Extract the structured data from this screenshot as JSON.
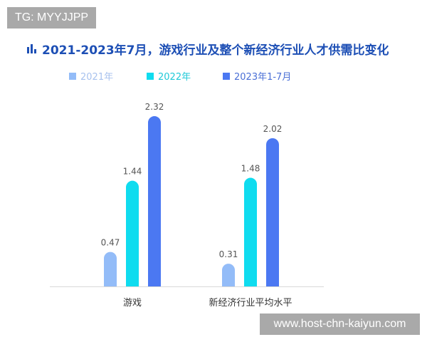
{
  "watermarks": {
    "top_left": "TG: MYYJJPP",
    "bottom_right": "www.host-chn-kaiyun.com"
  },
  "chart_data": {
    "type": "bar",
    "title": "2021-2023年7月，游戏行业及整个新经济行业人才供需比变化",
    "categories": [
      "游戏",
      "新经济行业平均水平"
    ],
    "series": [
      {
        "name": "2021年",
        "color": "#93bcf8",
        "values": [
          0.47,
          0.31
        ]
      },
      {
        "name": "2022年",
        "color": "#0fdcef",
        "values": [
          1.44,
          1.48
        ]
      },
      {
        "name": "2023年1-7月",
        "color": "#4b78f2",
        "values": [
          2.32,
          2.02
        ]
      }
    ],
    "legend_colors": {
      "2021年": "#93bcf8",
      "2022年": "#1fc9d8",
      "2023年1-7月": "#4a6fd6"
    },
    "legend_placement": "top",
    "grid": false,
    "ylim": [
      0,
      2.4
    ],
    "data_labels": true
  }
}
